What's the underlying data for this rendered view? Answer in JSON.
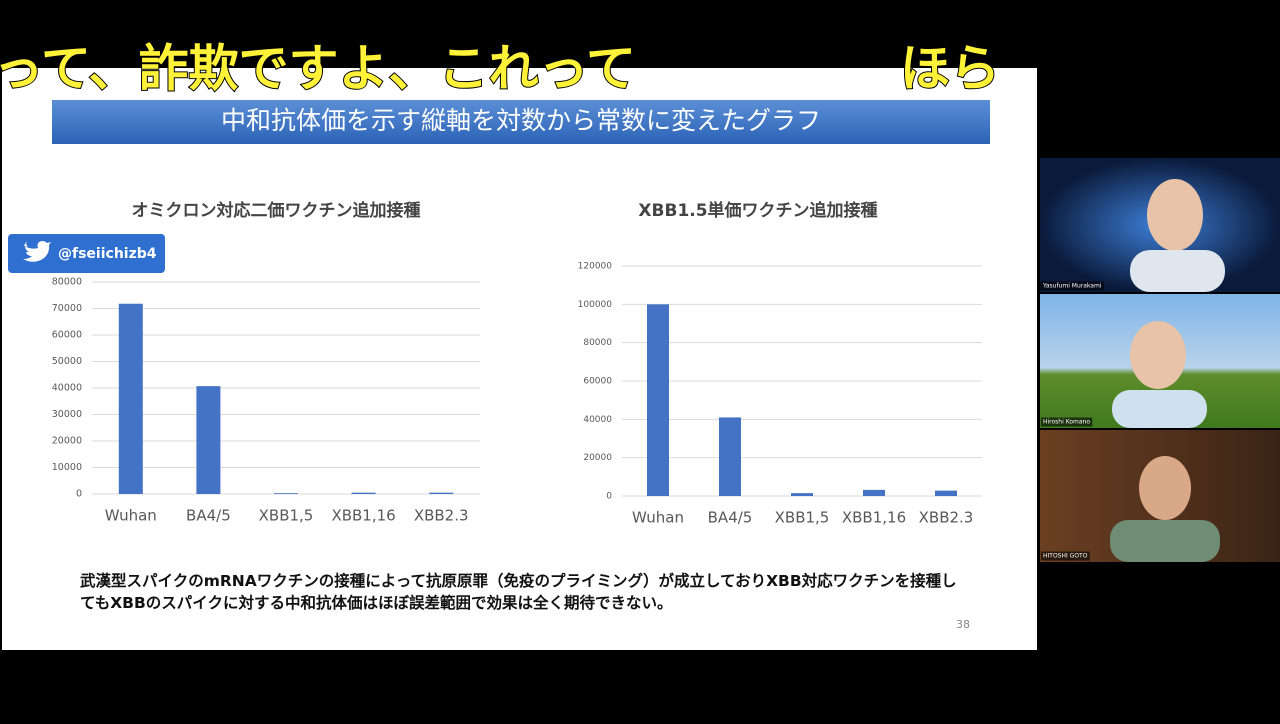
{
  "caption_overlay": [
    "だって、詐欺ですよ、これって",
    "ほら"
  ],
  "slide": {
    "header": "中和抗体価を示す縦軸を対数から常数に変えたグラフ",
    "twitter_handle": "@fseiichizb4",
    "note": "武漢型スパイクのmRNAワクチンの接種によって抗原原罪（免疫のプライミング）が成立しておりXBB対応ワクチンを接種してもXBBのスパイクに対する中和抗体価はほぼ誤差範囲で効果は全く期待できない。",
    "page_number": "38"
  },
  "chart_data": [
    {
      "type": "bar",
      "title": "オミクロン対応二価ワクチン追加接種",
      "categories": [
        "Wuhan",
        "BA4/5",
        "XBB1,5",
        "XBB1,16",
        "XBB2.3"
      ],
      "values": [
        71800,
        40700,
        300,
        500,
        500
      ],
      "color": "#4472c4",
      "ylim": [
        0,
        80000
      ],
      "yticks": [
        0,
        10000,
        20000,
        30000,
        40000,
        50000,
        60000,
        70000,
        80000
      ],
      "grid": true
    },
    {
      "type": "bar",
      "title": "XBB1.5単価ワクチン追加接種",
      "categories": [
        "Wuhan",
        "BA4/5",
        "XBB1,5",
        "XBB1,16",
        "XBB2.3"
      ],
      "values": [
        100000,
        41000,
        1500,
        3200,
        2800
      ],
      "color": "#4472c4",
      "ylim": [
        0,
        120000
      ],
      "yticks": [
        0,
        20000,
        40000,
        60000,
        80000,
        100000,
        120000
      ],
      "grid": true
    }
  ],
  "participants": [
    "Yasufumi Murakami",
    "Hiroshi Komano",
    "HITOSHI GOTO"
  ]
}
